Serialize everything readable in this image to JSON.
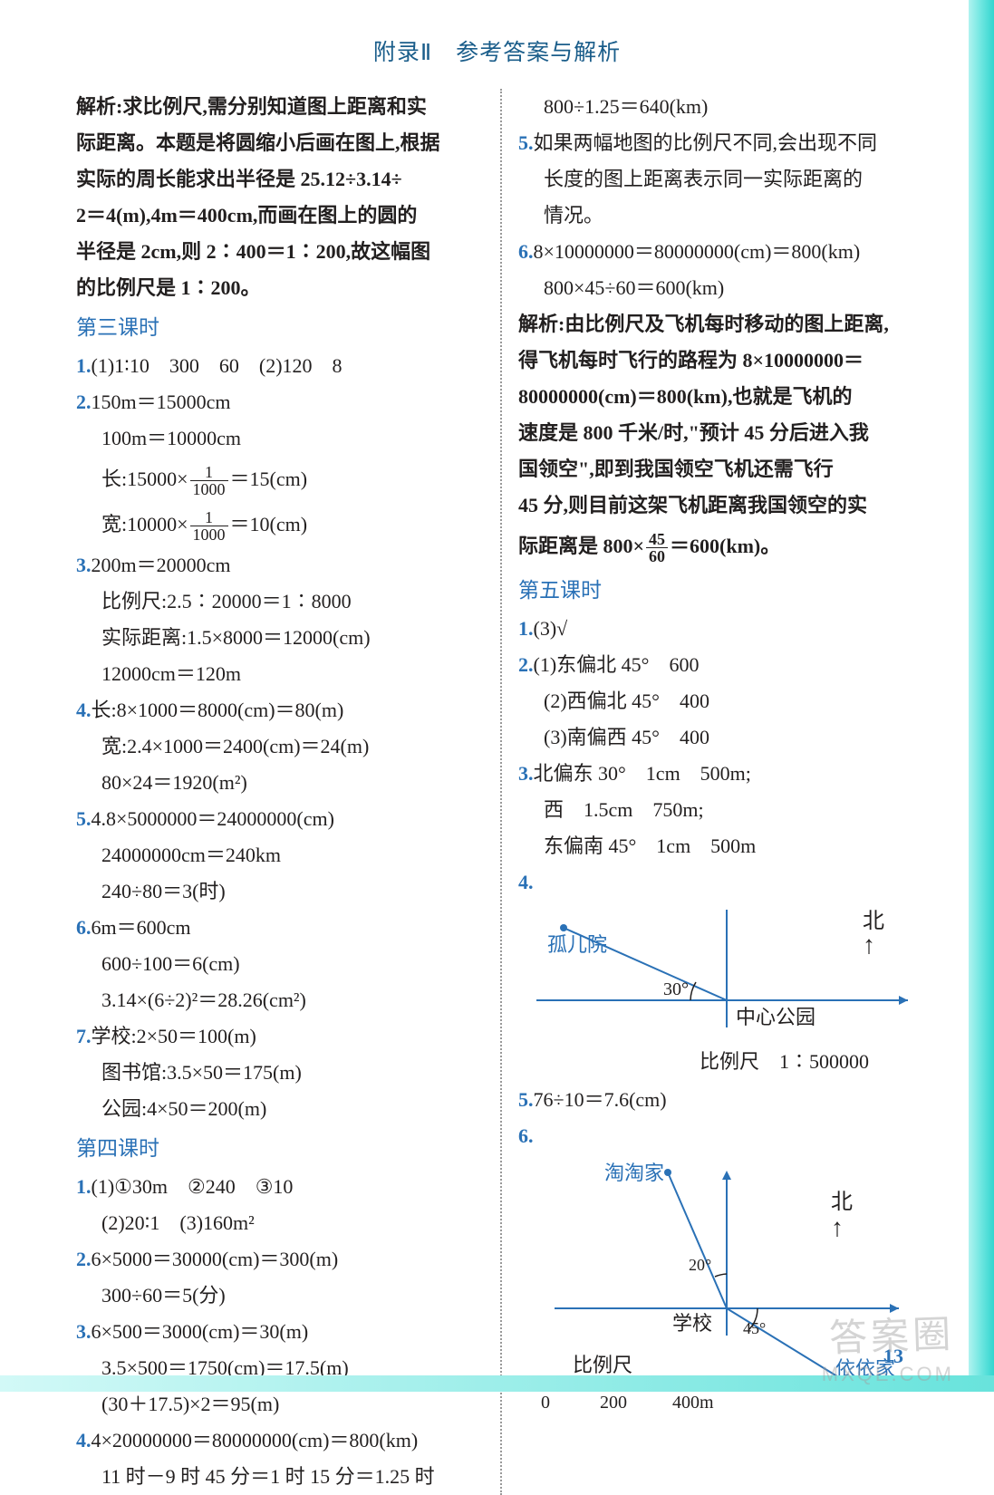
{
  "page": {
    "header": "附录Ⅱ　参考答案与解析",
    "pageNumber": "13",
    "watermark1": "答案圈",
    "watermark2": "MXQE.COM"
  },
  "left": {
    "explain0_l1": "解析:求比例尺,需分别知道图上距离和实",
    "explain0_l2": "际距离。本题是将圆缩小后画在图上,根据",
    "explain0_l3": "实际的周长能求出半径是 25.12÷3.14÷",
    "explain0_l4": "2＝4(m),4m＝400cm,而画在图上的圆的",
    "explain0_l5": "半径是 2cm,则 2∶400＝1∶200,故这幅图",
    "explain0_l6": "的比例尺是 1∶200。",
    "s3_title": "第三课时",
    "s3_q1": "(1)1∶10　300　60　(2)120　8",
    "s3_q2_l1": "150m＝15000cm",
    "s3_q2_l2": "100m＝10000cm",
    "s3_q2_l3a": "长:15000×",
    "s3_q2_l3b": "＝15(cm)",
    "s3_q2_l4a": "宽:10000×",
    "s3_q2_l4b": "＝10(cm)",
    "frac_t": "1",
    "frac_b": "1000",
    "s3_q3_l1": "200m＝20000cm",
    "s3_q3_l2": "比例尺:2.5∶20000＝1∶8000",
    "s3_q3_l3": "实际距离:1.5×8000＝12000(cm)",
    "s3_q3_l4": "12000cm＝120m",
    "s3_q4_l1": "长:8×1000＝8000(cm)＝80(m)",
    "s3_q4_l2": "宽:2.4×1000＝2400(cm)＝24(m)",
    "s3_q4_l3": "80×24＝1920(m²)",
    "s3_q5_l1": "4.8×5000000＝24000000(cm)",
    "s3_q5_l2": "24000000cm＝240km",
    "s3_q5_l3": "240÷80＝3(时)",
    "s3_q6_l1": "6m＝600cm",
    "s3_q6_l2": "600÷100＝6(cm)",
    "s3_q6_l3": "3.14×(6÷2)²＝28.26(cm²)",
    "s3_q7_l1": "学校:2×50＝100(m)",
    "s3_q7_l2": "图书馆:3.5×50＝175(m)",
    "s3_q7_l3": "公园:4×50＝200(m)",
    "s4_title": "第四课时",
    "s4_q1_l1": "(1)①30m　②240　③10",
    "s4_q1_l2": "(2)20∶1　(3)160m²",
    "s4_q2_l1": "6×5000＝30000(cm)＝300(m)",
    "s4_q2_l2": "300÷60＝5(分)",
    "s4_q3_l1": "6×500＝3000(cm)＝30(m)",
    "s4_q3_l2": "3.5×500＝1750(cm)＝17.5(m)",
    "s4_q3_l3": "(30＋17.5)×2＝95(m)",
    "s4_q4_l1": "4×20000000＝80000000(cm)＝800(km)",
    "s4_q4_l2": "11 时－9 时 45 分＝1 时 15 分＝1.25 时"
  },
  "right": {
    "top_l1": "800÷1.25＝640(km)",
    "q5_l1": "如果两幅地图的比例尺不同,会出现不同",
    "q5_l2": "长度的图上距离表示同一实际距离的",
    "q5_l3": "情况。",
    "q6_l1": "8×10000000＝80000000(cm)＝800(km)",
    "q6_l2": "800×45÷60＝600(km)",
    "ex_l1": "解析:由比例尺及飞机每时移动的图上距离,",
    "ex_l2": "得飞机每时飞行的路程为 8×10000000＝",
    "ex_l3": "80000000(cm)＝800(km),也就是飞机的",
    "ex_l4": "速度是 800 千米/时,\"预计 45 分后进入我",
    "ex_l5": "国领空\",即到我国领空飞机还需飞行",
    "ex_l6": "45 分,则目前这架飞机距离我国领空的实",
    "ex_l7a": "际距离是 800×",
    "ex_l7b": "＝600(km)。",
    "frac2_t": "45",
    "frac2_b": "60",
    "s5_title": "第五课时",
    "s5_q1": "(3)√",
    "s5_q2_l1": "(1)东偏北 45°　600",
    "s5_q2_l2": "(2)西偏北 45°　400",
    "s5_q2_l3": "(3)南偏西 45°　400",
    "s5_q3_l1": "北偏东 30°　1cm　500m;",
    "s5_q3_l2": "西　1.5cm　750m;",
    "s5_q3_l3": "东偏南 45°　1cm　500m",
    "s5_q5": "76÷10＝7.6(cm)"
  },
  "diagram1": {
    "north": "北",
    "arrow": "↑",
    "orphanage": "孤儿院",
    "angle": "30°",
    "park": "中心公园",
    "scale_label": "比例尺　1∶500000",
    "colors": {
      "axis": "#2a71b6",
      "line": "#2a71b6",
      "text": "#2a71b6",
      "black": "#221f1f"
    }
  },
  "diagram2": {
    "taotao": "淘淘家",
    "yiyi": "依依家",
    "school": "学校",
    "north": "北",
    "arrow": "↑",
    "angle1": "20°",
    "angle2": "45°",
    "scale_label": "比例尺",
    "tick0": "0",
    "tick1": "200",
    "tick2": "400m",
    "colors": {
      "axis": "#2a71b6",
      "line": "#2a71b6",
      "text": "#2a71b6",
      "black": "#221f1f"
    }
  },
  "nums": {
    "n1": "1.",
    "n2": "2.",
    "n3": "3.",
    "n4": "4.",
    "n5": "5.",
    "n6": "6.",
    "n7": "7."
  }
}
